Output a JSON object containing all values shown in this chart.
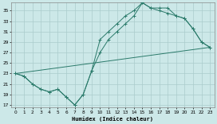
{
  "xlabel": "Humidex (Indice chaleur)",
  "bg_color": "#cce8e8",
  "grid_color": "#aacccc",
  "line_color": "#2a7a6a",
  "xlim": [
    -0.5,
    23.5
  ],
  "ylim": [
    16.5,
    36.5
  ],
  "yticks": [
    17,
    19,
    21,
    23,
    25,
    27,
    29,
    31,
    33,
    35
  ],
  "xticks": [
    0,
    1,
    2,
    3,
    4,
    5,
    6,
    7,
    8,
    9,
    10,
    11,
    12,
    13,
    14,
    15,
    16,
    17,
    18,
    19,
    20,
    21,
    22,
    23
  ],
  "line1_x": [
    0,
    1,
    2,
    3,
    4,
    5,
    6,
    7,
    8,
    9,
    10,
    11,
    12,
    13,
    14,
    15,
    16,
    17,
    18,
    19,
    20,
    21,
    22,
    23
  ],
  "line1_y": [
    23,
    22.5,
    21,
    20,
    19.5,
    20,
    18.5,
    17,
    19,
    23.5,
    27,
    29.5,
    31,
    32.5,
    34,
    36.5,
    35.5,
    35.5,
    35.5,
    34,
    33.5,
    31.5,
    29,
    28
  ],
  "line2_x": [
    0,
    1,
    2,
    3,
    4,
    5,
    6,
    7,
    8,
    9,
    10,
    11,
    12,
    13,
    14,
    15,
    16,
    17,
    18,
    19,
    20,
    21,
    22,
    23
  ],
  "line2_y": [
    23,
    22.5,
    21,
    20,
    19.5,
    20,
    18.5,
    17,
    19,
    23.5,
    29.5,
    31,
    32.5,
    34,
    35,
    36.5,
    35.5,
    35,
    34.5,
    34,
    33.5,
    31.5,
    29,
    28
  ],
  "line3_x": [
    0,
    23
  ],
  "line3_y": [
    23,
    28
  ]
}
